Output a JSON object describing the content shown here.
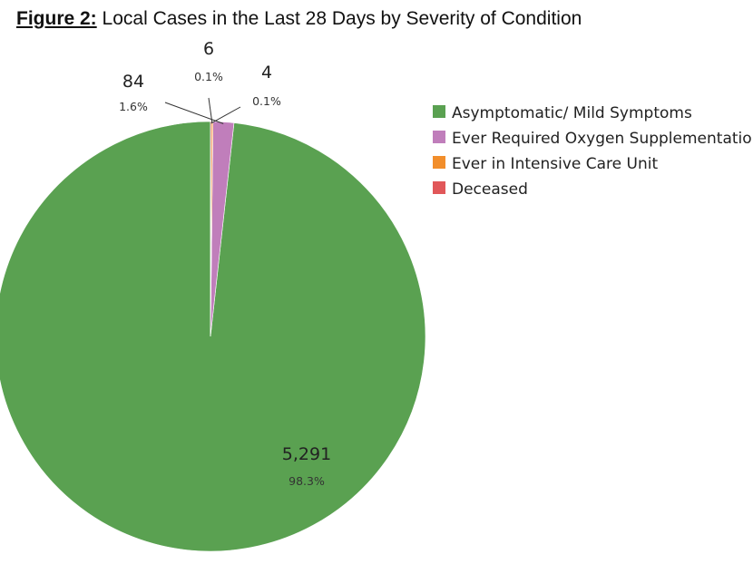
{
  "figure": {
    "label": "Figure 2:",
    "title": "Local Cases in the Last 28 Days by Severity of Condition"
  },
  "chart_data": {
    "type": "pie",
    "title": "Local Cases in the Last 28 Days by Severity of Condition",
    "categories": [
      "Asymptomatic/ Mild Symptoms",
      "Ever Required Oxygen Supplementation",
      "Ever in Intensive Care Unit",
      "Deceased"
    ],
    "values": [
      5291,
      84,
      6,
      4
    ],
    "value_labels": [
      "5,291",
      "84",
      "6",
      "4"
    ],
    "percent_labels": [
      "98.3%",
      "1.6%",
      "0.1%",
      "0.1%"
    ],
    "colors": [
      "#5aa151",
      "#c07ebb",
      "#f28e2b",
      "#e15759"
    ],
    "legend_position": "right",
    "start_angle_deg": 0,
    "direction": "counterclockwise"
  }
}
